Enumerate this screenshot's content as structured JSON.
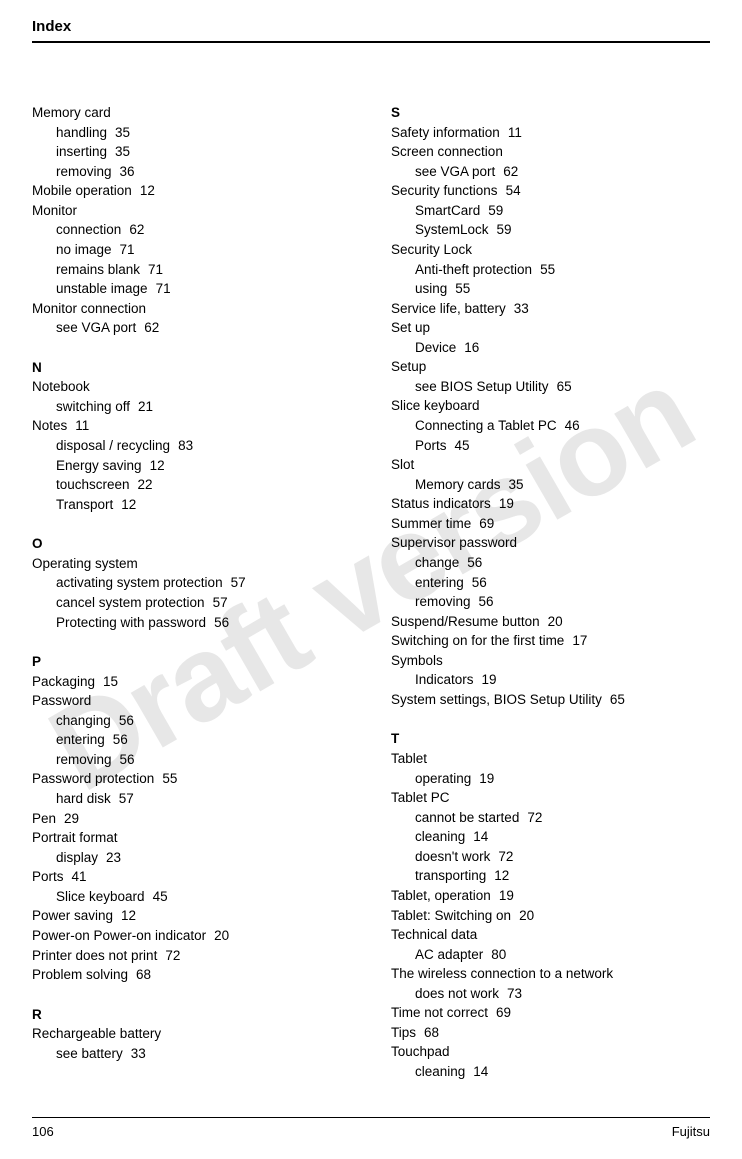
{
  "header": {
    "title": "Index"
  },
  "watermark": "Draft version",
  "footer": {
    "page_number": "106",
    "brand": "Fujitsu"
  },
  "left_column": [
    {
      "type": "entry",
      "text": "Memory card",
      "page": ""
    },
    {
      "type": "sub",
      "text": "handling",
      "page": "35"
    },
    {
      "type": "sub",
      "text": "inserting",
      "page": "35"
    },
    {
      "type": "sub",
      "text": "removing",
      "page": "36"
    },
    {
      "type": "entry",
      "text": "Mobile operation",
      "page": "12"
    },
    {
      "type": "entry",
      "text": "Monitor",
      "page": ""
    },
    {
      "type": "sub",
      "text": "connection",
      "page": "62"
    },
    {
      "type": "sub",
      "text": "no image",
      "page": "71"
    },
    {
      "type": "sub",
      "text": "remains blank",
      "page": "71"
    },
    {
      "type": "sub",
      "text": "unstable image",
      "page": "71"
    },
    {
      "type": "entry",
      "text": "Monitor connection",
      "page": ""
    },
    {
      "type": "sub",
      "text": "see VGA port",
      "page": "62"
    },
    {
      "type": "letter",
      "text": "N"
    },
    {
      "type": "entry",
      "text": "Notebook",
      "page": ""
    },
    {
      "type": "sub",
      "text": "switching off",
      "page": "21"
    },
    {
      "type": "entry",
      "text": "Notes",
      "page": "11"
    },
    {
      "type": "sub",
      "text": "disposal / recycling",
      "page": "83"
    },
    {
      "type": "sub",
      "text": "Energy saving",
      "page": "12"
    },
    {
      "type": "sub",
      "text": "touchscreen",
      "page": "22"
    },
    {
      "type": "sub",
      "text": "Transport",
      "page": "12"
    },
    {
      "type": "letter",
      "text": "O"
    },
    {
      "type": "entry",
      "text": "Operating system",
      "page": ""
    },
    {
      "type": "sub",
      "text": "activating system protection",
      "page": "57"
    },
    {
      "type": "sub",
      "text": "cancel system protection",
      "page": "57"
    },
    {
      "type": "sub",
      "text": "Protecting with password",
      "page": "56"
    },
    {
      "type": "letter",
      "text": "P"
    },
    {
      "type": "entry",
      "text": "Packaging",
      "page": "15"
    },
    {
      "type": "entry",
      "text": "Password",
      "page": ""
    },
    {
      "type": "sub",
      "text": "changing",
      "page": "56"
    },
    {
      "type": "sub",
      "text": "entering",
      "page": "56"
    },
    {
      "type": "sub",
      "text": "removing",
      "page": "56"
    },
    {
      "type": "entry",
      "text": "Password protection",
      "page": "55"
    },
    {
      "type": "sub",
      "text": "hard disk",
      "page": "57"
    },
    {
      "type": "entry",
      "text": "Pen",
      "page": "29"
    },
    {
      "type": "entry",
      "text": "Portrait format",
      "page": ""
    },
    {
      "type": "sub",
      "text": "display",
      "page": "23"
    },
    {
      "type": "entry",
      "text": "Ports",
      "page": "41"
    },
    {
      "type": "sub",
      "text": "Slice keyboard",
      "page": "45"
    },
    {
      "type": "entry",
      "text": "Power saving",
      "page": "12"
    },
    {
      "type": "entry",
      "text": "Power-on Power-on indicator",
      "page": "20"
    },
    {
      "type": "entry",
      "text": "Printer does not print",
      "page": "72"
    },
    {
      "type": "entry",
      "text": "Problem solving",
      "page": "68"
    },
    {
      "type": "letter",
      "text": "R"
    },
    {
      "type": "entry",
      "text": "Rechargeable battery",
      "page": ""
    },
    {
      "type": "sub",
      "text": "see battery",
      "page": "33"
    }
  ],
  "right_column": [
    {
      "type": "letter_first",
      "text": "S"
    },
    {
      "type": "entry",
      "text": "Safety information",
      "page": "11"
    },
    {
      "type": "entry",
      "text": "Screen connection",
      "page": ""
    },
    {
      "type": "sub",
      "text": "see VGA port",
      "page": "62"
    },
    {
      "type": "entry",
      "text": "Security functions",
      "page": "54"
    },
    {
      "type": "sub",
      "text": "SmartCard",
      "page": "59"
    },
    {
      "type": "sub",
      "text": "SystemLock",
      "page": "59"
    },
    {
      "type": "entry",
      "text": "Security Lock",
      "page": ""
    },
    {
      "type": "sub",
      "text": "Anti-theft protection",
      "page": "55"
    },
    {
      "type": "sub",
      "text": "using",
      "page": "55"
    },
    {
      "type": "entry",
      "text": "Service life, battery",
      "page": "33"
    },
    {
      "type": "entry",
      "text": "Set up",
      "page": ""
    },
    {
      "type": "sub",
      "text": "Device",
      "page": "16"
    },
    {
      "type": "entry",
      "text": "Setup",
      "page": ""
    },
    {
      "type": "sub",
      "text": "see BIOS Setup Utility",
      "page": "65"
    },
    {
      "type": "entry",
      "text": "Slice keyboard",
      "page": ""
    },
    {
      "type": "sub",
      "text": "Connecting a Tablet PC",
      "page": "46"
    },
    {
      "type": "sub",
      "text": "Ports",
      "page": "45"
    },
    {
      "type": "entry",
      "text": "Slot",
      "page": ""
    },
    {
      "type": "sub",
      "text": "Memory cards",
      "page": "35"
    },
    {
      "type": "entry",
      "text": "Status indicators",
      "page": "19"
    },
    {
      "type": "entry",
      "text": "Summer time",
      "page": "69"
    },
    {
      "type": "entry",
      "text": "Supervisor password",
      "page": ""
    },
    {
      "type": "sub",
      "text": "change",
      "page": "56"
    },
    {
      "type": "sub",
      "text": "entering",
      "page": "56"
    },
    {
      "type": "sub",
      "text": "removing",
      "page": "56"
    },
    {
      "type": "entry",
      "text": "Suspend/Resume button",
      "page": "20"
    },
    {
      "type": "entry",
      "text": "Switching on for the first time",
      "page": "17"
    },
    {
      "type": "entry",
      "text": "Symbols",
      "page": ""
    },
    {
      "type": "sub",
      "text": "Indicators",
      "page": "19"
    },
    {
      "type": "entry",
      "text": "System settings, BIOS Setup Utility",
      "page": "65"
    },
    {
      "type": "letter",
      "text": "T"
    },
    {
      "type": "entry",
      "text": "Tablet",
      "page": ""
    },
    {
      "type": "sub",
      "text": "operating",
      "page": "19"
    },
    {
      "type": "entry",
      "text": "Tablet PC",
      "page": ""
    },
    {
      "type": "sub",
      "text": "cannot be started",
      "page": "72"
    },
    {
      "type": "sub",
      "text": "cleaning",
      "page": "14"
    },
    {
      "type": "sub",
      "text": "doesn't work",
      "page": "72"
    },
    {
      "type": "sub",
      "text": "transporting",
      "page": "12"
    },
    {
      "type": "entry",
      "text": "Tablet, operation",
      "page": "19"
    },
    {
      "type": "entry",
      "text": "Tablet: Switching on",
      "page": "20"
    },
    {
      "type": "entry",
      "text": "Technical data",
      "page": ""
    },
    {
      "type": "sub",
      "text": "AC adapter",
      "page": "80"
    },
    {
      "type": "entry",
      "text": "The wireless connection to a network",
      "page": ""
    },
    {
      "type": "sub",
      "text": "does not work",
      "page": "73"
    },
    {
      "type": "entry",
      "text": "Time not correct",
      "page": "69"
    },
    {
      "type": "entry",
      "text": "Tips",
      "page": "68"
    },
    {
      "type": "entry",
      "text": "Touchpad",
      "page": ""
    },
    {
      "type": "sub",
      "text": "cleaning",
      "page": "14"
    }
  ]
}
